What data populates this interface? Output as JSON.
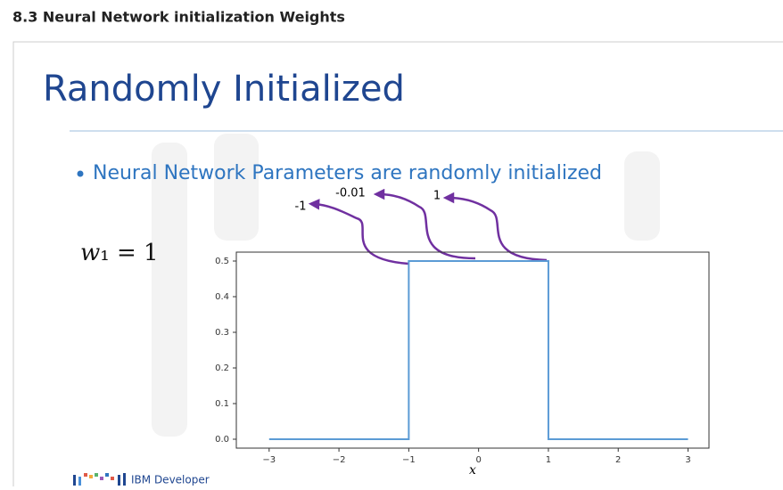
{
  "header": {
    "title": "8.3 Neural Network initialization Weights"
  },
  "slide": {
    "title": "Randomly Initialized",
    "bullet": "Neural Network Parameters are randomly initialized",
    "equation": "𝑤₁ = 1",
    "annotations": [
      "-1",
      "-0.01",
      "1"
    ],
    "chart": {
      "type": "line",
      "x": [
        -3,
        -1,
        -1,
        1,
        1,
        3
      ],
      "series": [
        {
          "color": "#5b9bd5",
          "values": [
            0,
            0,
            0.5,
            0.5,
            0,
            0
          ]
        }
      ],
      "xlim": [
        -3.47,
        3.3
      ],
      "ylim": [
        -0.025,
        0.525
      ],
      "xticks": [
        {
          "value": -3,
          "label": "−3"
        },
        {
          "value": -2,
          "label": "−2"
        },
        {
          "value": -1,
          "label": "−1"
        },
        0,
        1,
        2,
        3
      ],
      "yticks": [
        {
          "value": 0,
          "label": "0.0"
        },
        0.1,
        0.2,
        0.3,
        0.4,
        0.5
      ],
      "xlabel": "x"
    },
    "footer": "IBM Developer"
  }
}
